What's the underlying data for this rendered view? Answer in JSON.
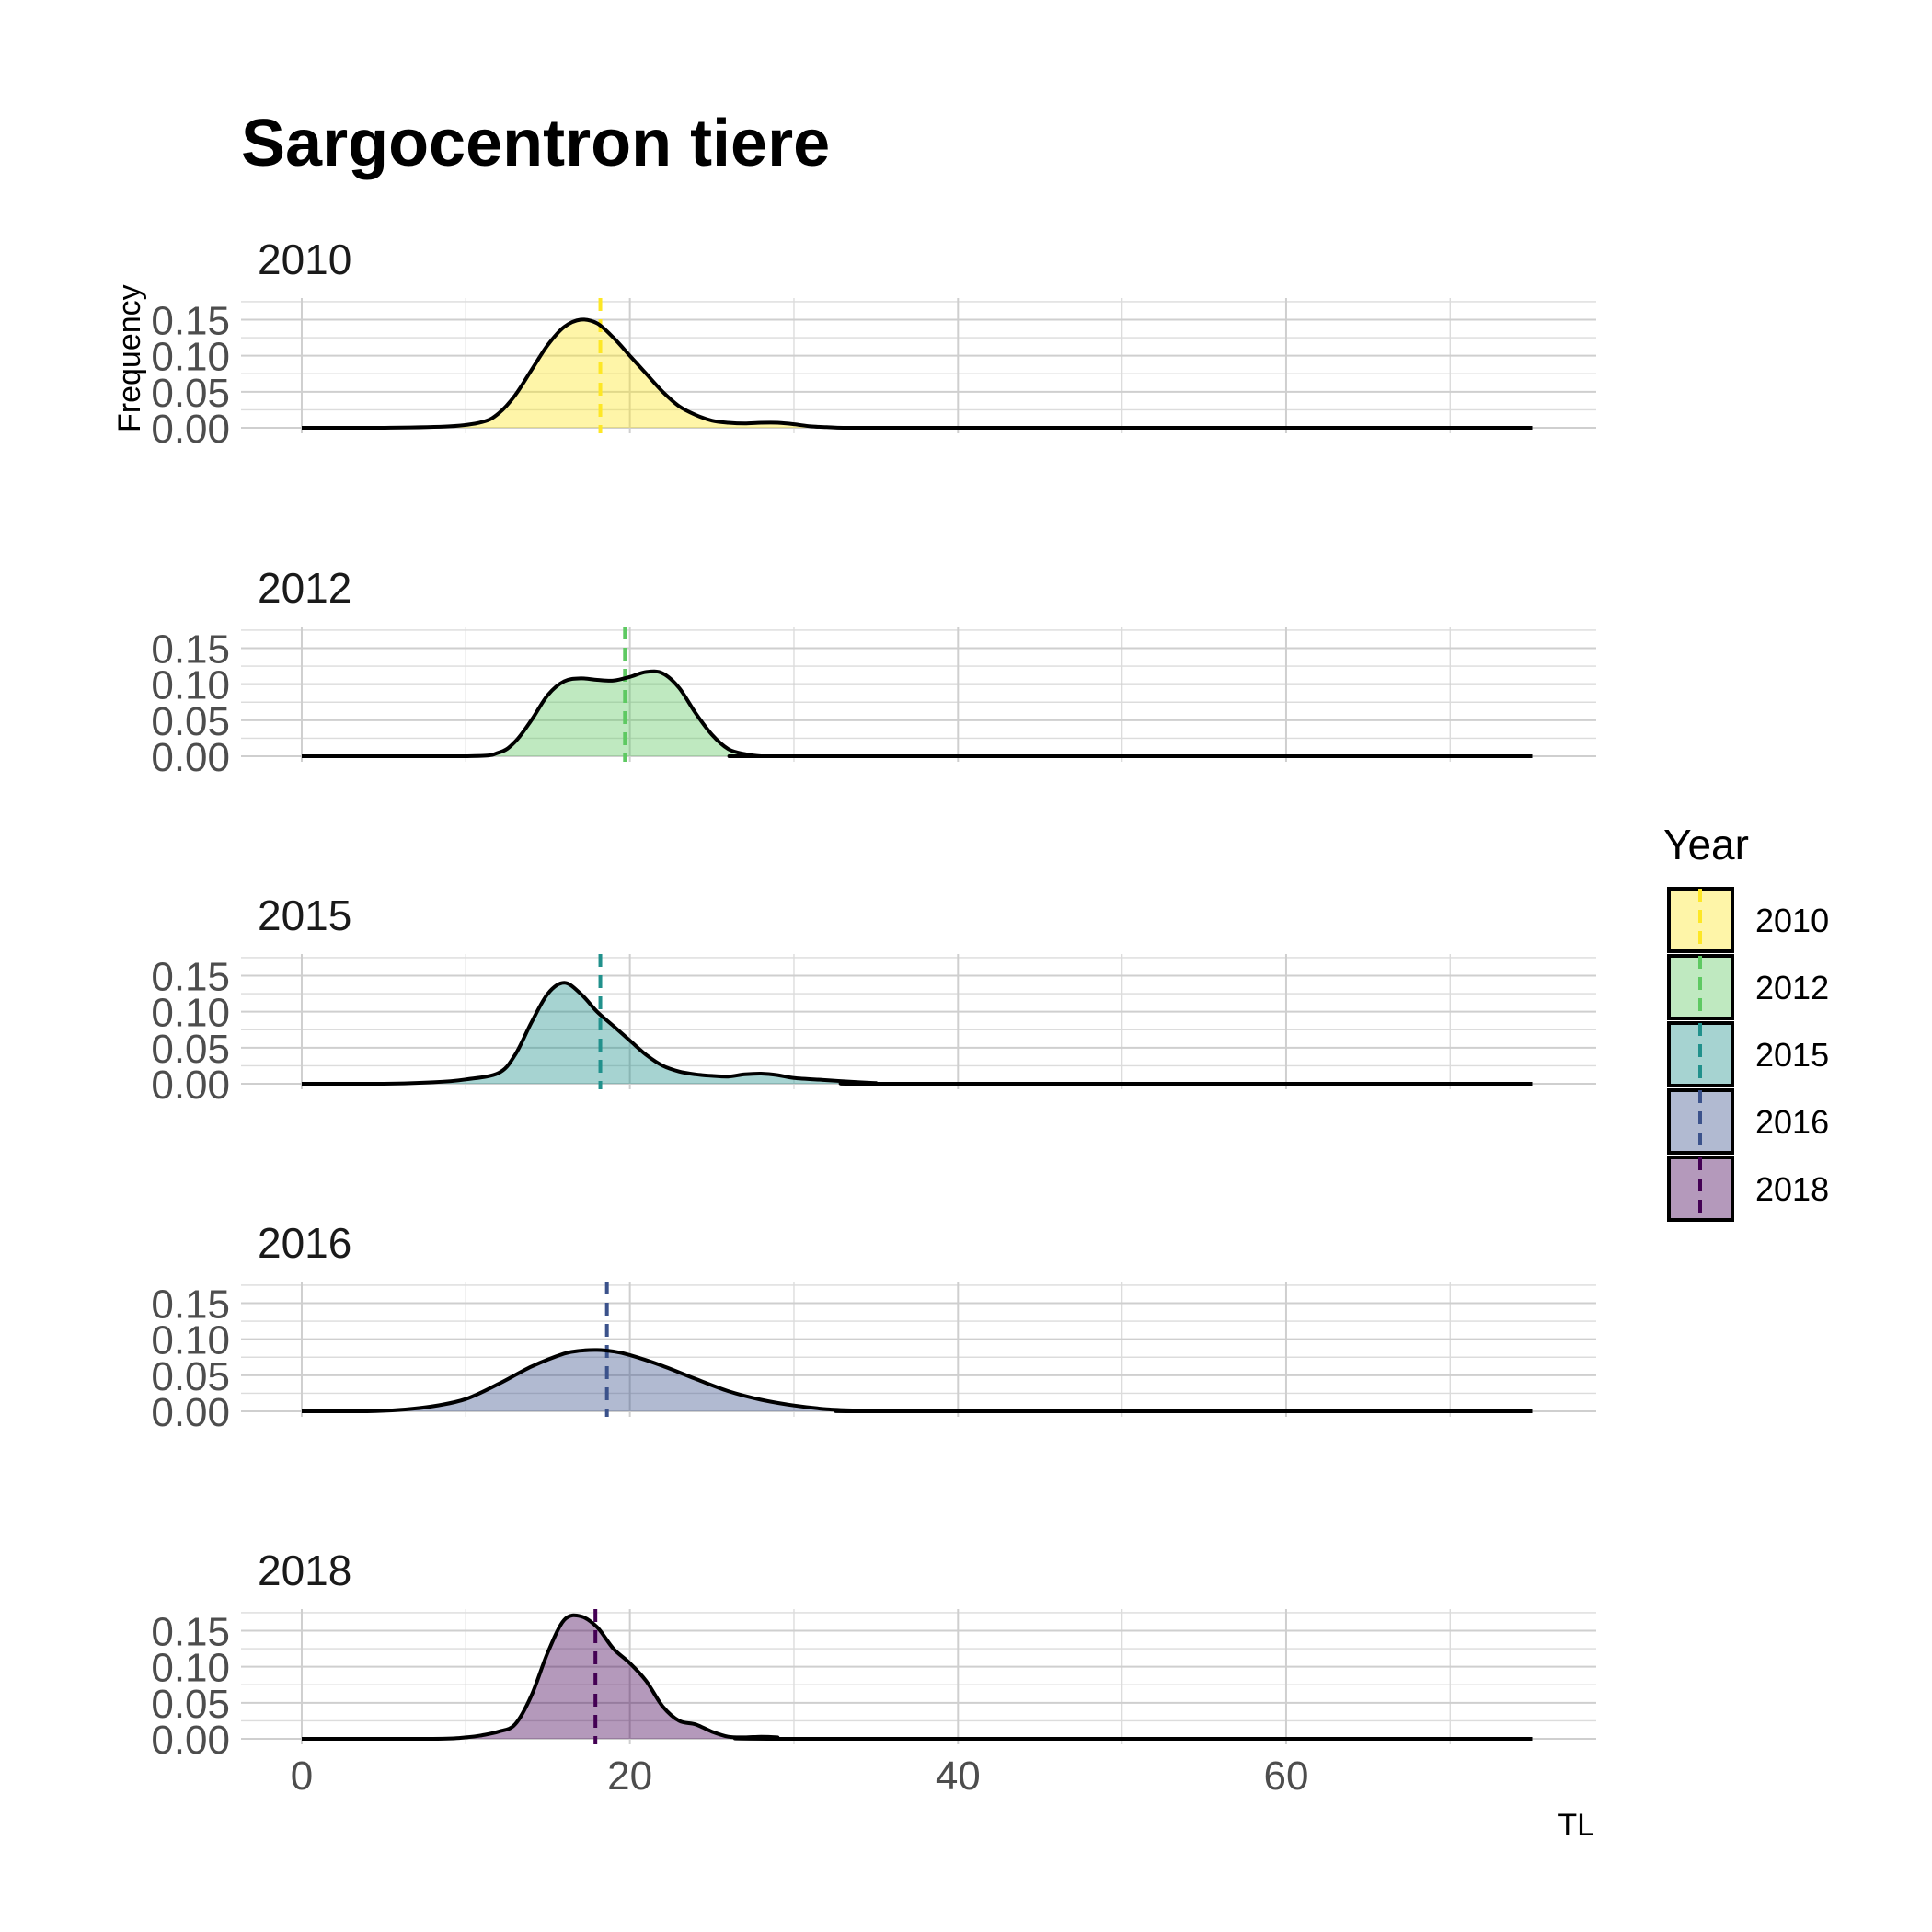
{
  "chart_data": {
    "type": "area",
    "title": "Sargocentron tiere",
    "xlabel": "TL",
    "ylabel": "Frequency",
    "xlim": [
      -3.7,
      78.9
    ],
    "ylim": [
      0,
      0.18
    ],
    "x_ticks": [
      0,
      20,
      40,
      60
    ],
    "y_ticks": [
      0,
      0.05,
      0.1,
      0.15
    ],
    "y_tick_labels": [
      "0.00",
      "0.05",
      "0.10",
      "0.15"
    ],
    "legend": {
      "title": "Year",
      "position": "right"
    },
    "grid": true,
    "facets": [
      {
        "label": "2010",
        "color": "#fde725",
        "mean": 18.2,
        "x": [
          0,
          5,
          9,
          11,
          12,
          13,
          14,
          15,
          16,
          17,
          18,
          19,
          20,
          21,
          22,
          23,
          24,
          25,
          26,
          27,
          28,
          29,
          30,
          31,
          32,
          33,
          35,
          40,
          75
        ],
        "y": [
          0,
          0,
          0.002,
          0.008,
          0.02,
          0.045,
          0.08,
          0.115,
          0.14,
          0.15,
          0.145,
          0.125,
          0.1,
          0.075,
          0.05,
          0.03,
          0.018,
          0.01,
          0.007,
          0.006,
          0.007,
          0.007,
          0.005,
          0.002,
          0.001,
          0,
          0,
          0,
          0
        ]
      },
      {
        "label": "2012",
        "color": "#5ec962",
        "mean": 19.7,
        "x": [
          0,
          10,
          12,
          13,
          14,
          15,
          16,
          17,
          18,
          19,
          20,
          21,
          22,
          23,
          24,
          25,
          26,
          27,
          28,
          30,
          75
        ],
        "y": [
          0,
          0,
          0.005,
          0.02,
          0.05,
          0.085,
          0.104,
          0.108,
          0.106,
          0.105,
          0.11,
          0.117,
          0.115,
          0.095,
          0.06,
          0.03,
          0.01,
          0.003,
          0,
          0,
          0
        ]
      },
      {
        "label": "2015",
        "color": "#21918c",
        "mean": 18.2,
        "x": [
          0,
          5,
          8,
          10,
          12,
          13,
          14,
          15,
          16,
          17,
          18,
          19,
          20,
          21,
          22,
          23,
          24,
          25,
          26,
          27,
          28,
          29,
          30,
          32,
          34,
          35,
          36,
          75
        ],
        "y": [
          0,
          0,
          0.002,
          0.006,
          0.015,
          0.04,
          0.085,
          0.125,
          0.14,
          0.125,
          0.1,
          0.08,
          0.06,
          0.04,
          0.025,
          0.017,
          0.013,
          0.011,
          0.01,
          0.013,
          0.014,
          0.012,
          0.008,
          0.005,
          0.002,
          0.001,
          0,
          0
        ]
      },
      {
        "label": "2016",
        "color": "#3b528b",
        "mean": 18.6,
        "x": [
          0,
          4,
          6,
          8,
          10,
          12,
          14,
          16,
          17,
          18,
          19,
          20,
          22,
          24,
          26,
          28,
          30,
          32,
          34,
          36,
          75
        ],
        "y": [
          0,
          0,
          0.002,
          0.007,
          0.017,
          0.038,
          0.062,
          0.08,
          0.084,
          0.085,
          0.083,
          0.078,
          0.063,
          0.045,
          0.028,
          0.016,
          0.008,
          0.003,
          0.001,
          0,
          0
        ]
      },
      {
        "label": "2018",
        "color": "#440154",
        "mean": 17.9,
        "x": [
          0,
          8,
          10,
          11,
          12,
          13,
          14,
          15,
          16,
          17,
          18,
          19,
          20,
          21,
          22,
          23,
          24,
          25,
          26,
          27,
          28,
          29,
          30,
          75
        ],
        "y": [
          0,
          0,
          0.002,
          0.005,
          0.01,
          0.02,
          0.06,
          0.12,
          0.165,
          0.17,
          0.155,
          0.125,
          0.105,
          0.08,
          0.045,
          0.025,
          0.02,
          0.01,
          0.003,
          0.002,
          0.003,
          0.002,
          0,
          0
        ]
      }
    ]
  }
}
